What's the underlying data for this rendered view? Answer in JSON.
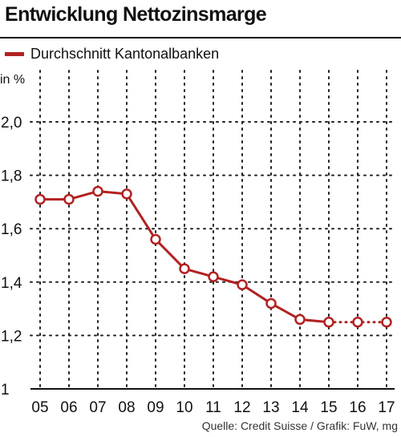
{
  "header": {
    "title": "Entwicklung Nettozinsmarge"
  },
  "legend": {
    "label": "Durchschnitt Kantonalbanken"
  },
  "axis": {
    "unit": "in %"
  },
  "footer": {
    "source": "Quelle: Credit Suisse / Grafik: FuW, mg"
  },
  "colors": {
    "line": "#b22222",
    "grid": "#222222",
    "marker_fill": "#ffffff"
  },
  "chart_data": {
    "type": "line",
    "title": "Entwicklung Nettozinsmarge",
    "ylabel": "in %",
    "xlabel": "",
    "x": [
      "05",
      "06",
      "07",
      "08",
      "09",
      "10",
      "11",
      "12",
      "13",
      "14",
      "15",
      "16",
      "17"
    ],
    "series": [
      {
        "name": "Durchschnitt Kantonalbanken",
        "values": [
          1.71,
          1.71,
          1.74,
          1.73,
          1.56,
          1.45,
          1.42,
          1.39,
          1.32,
          1.26,
          1.25,
          1.25,
          1.25
        ],
        "dotted_from_index": 10
      }
    ],
    "yticks": [
      1,
      1.2,
      1.4,
      1.6,
      1.8,
      2.0
    ],
    "ytick_labels": [
      "1",
      "1,2",
      "1,4",
      "1,6",
      "1,8",
      "2,0"
    ],
    "ylim": [
      1.0,
      2.1
    ],
    "grid": true,
    "grid_style": "dotted",
    "legend_position": "top-left"
  }
}
